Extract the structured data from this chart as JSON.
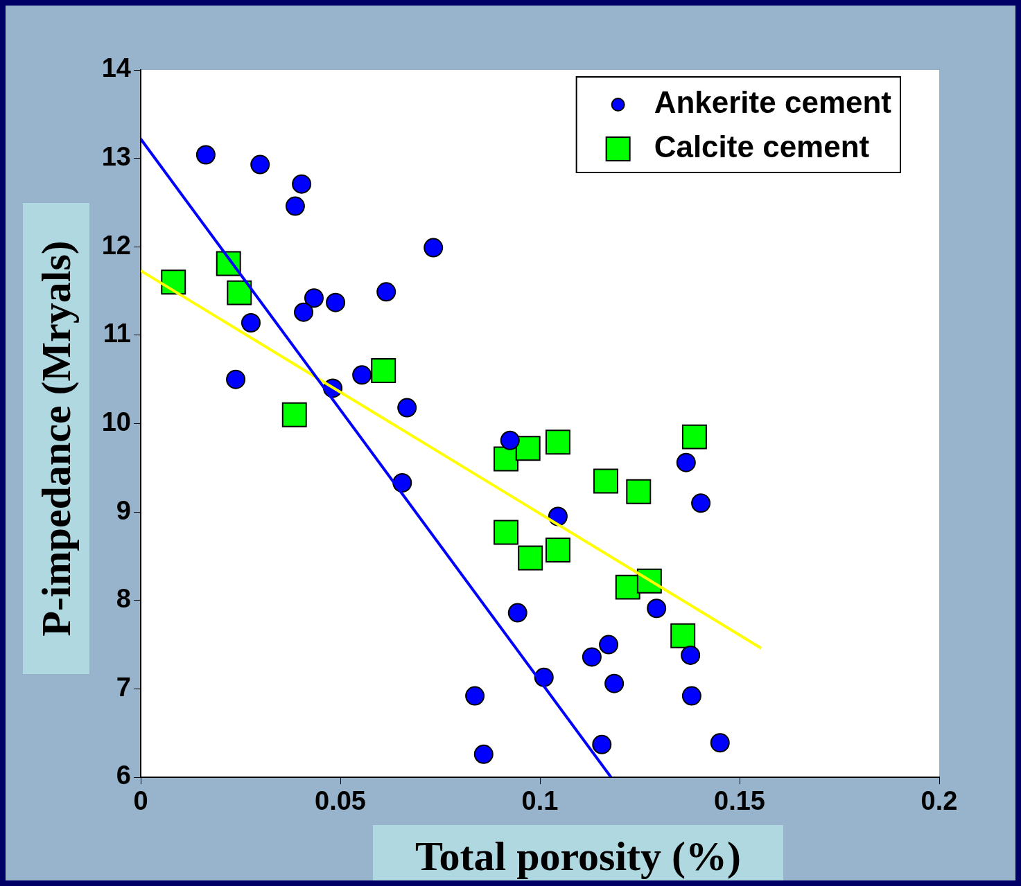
{
  "chart_data": {
    "type": "scatter",
    "xlabel": "Total porosity (%)",
    "ylabel": "P-impedance (Mryals)",
    "xlim": [
      0,
      0.2
    ],
    "ylim": [
      6,
      14
    ],
    "xticks": [
      0,
      0.05,
      0.1,
      0.15,
      0.2
    ],
    "yticks": [
      6,
      7,
      8,
      9,
      10,
      11,
      12,
      13,
      14
    ],
    "grid": false,
    "legend": "top right",
    "series": [
      {
        "name": "Ankerite cement",
        "type": "scatter",
        "marker": "circle",
        "color": "#0000ff",
        "x": [
          0.0163,
          0.0299,
          0.0403,
          0.0387,
          0.0733,
          0.0615,
          0.0434,
          0.0488,
          0.0408,
          0.0276,
          0.0238,
          0.0554,
          0.0481,
          0.0667,
          0.0925,
          0.0655,
          0.1366,
          0.1403,
          0.1045,
          0.1292,
          0.0944,
          0.1172,
          0.113,
          0.1377,
          0.101,
          0.1186,
          0.0837,
          0.138,
          0.1155,
          0.1451,
          0.0859
        ],
        "values": [
          13.04,
          12.93,
          12.71,
          12.46,
          11.99,
          11.49,
          11.42,
          11.37,
          11.26,
          11.14,
          10.5,
          10.55,
          10.4,
          10.18,
          9.81,
          9.33,
          9.56,
          9.1,
          8.95,
          7.91,
          7.86,
          7.5,
          7.36,
          7.38,
          7.13,
          7.06,
          6.92,
          6.92,
          6.37,
          6.39,
          6.26
        ]
      },
      {
        "name": "Calcite cement",
        "type": "scatter",
        "marker": "square",
        "color": "#00ff00",
        "x": [
          0.0082,
          0.022,
          0.0247,
          0.0608,
          0.0385,
          0.0915,
          0.097,
          0.1045,
          0.1387,
          0.1165,
          0.1247,
          0.0915,
          0.0976,
          0.1045,
          0.122,
          0.1274,
          0.1358
        ],
        "values": [
          11.6,
          11.81,
          11.48,
          10.6,
          10.1,
          9.6,
          9.72,
          9.79,
          9.85,
          9.35,
          9.23,
          8.77,
          8.48,
          8.57,
          8.15,
          8.22,
          7.6
        ]
      },
      {
        "type": "line",
        "marker": "none",
        "line_style": "solid",
        "color": "#0000ff",
        "x": [
          0,
          0.1178
        ],
        "values": [
          13.22,
          6
        ]
      },
      {
        "type": "line",
        "marker": "none",
        "line_style": "solid",
        "color": "#ffff00",
        "x": [
          0,
          0.1554
        ],
        "values": [
          11.73,
          7.46
        ]
      }
    ]
  }
}
